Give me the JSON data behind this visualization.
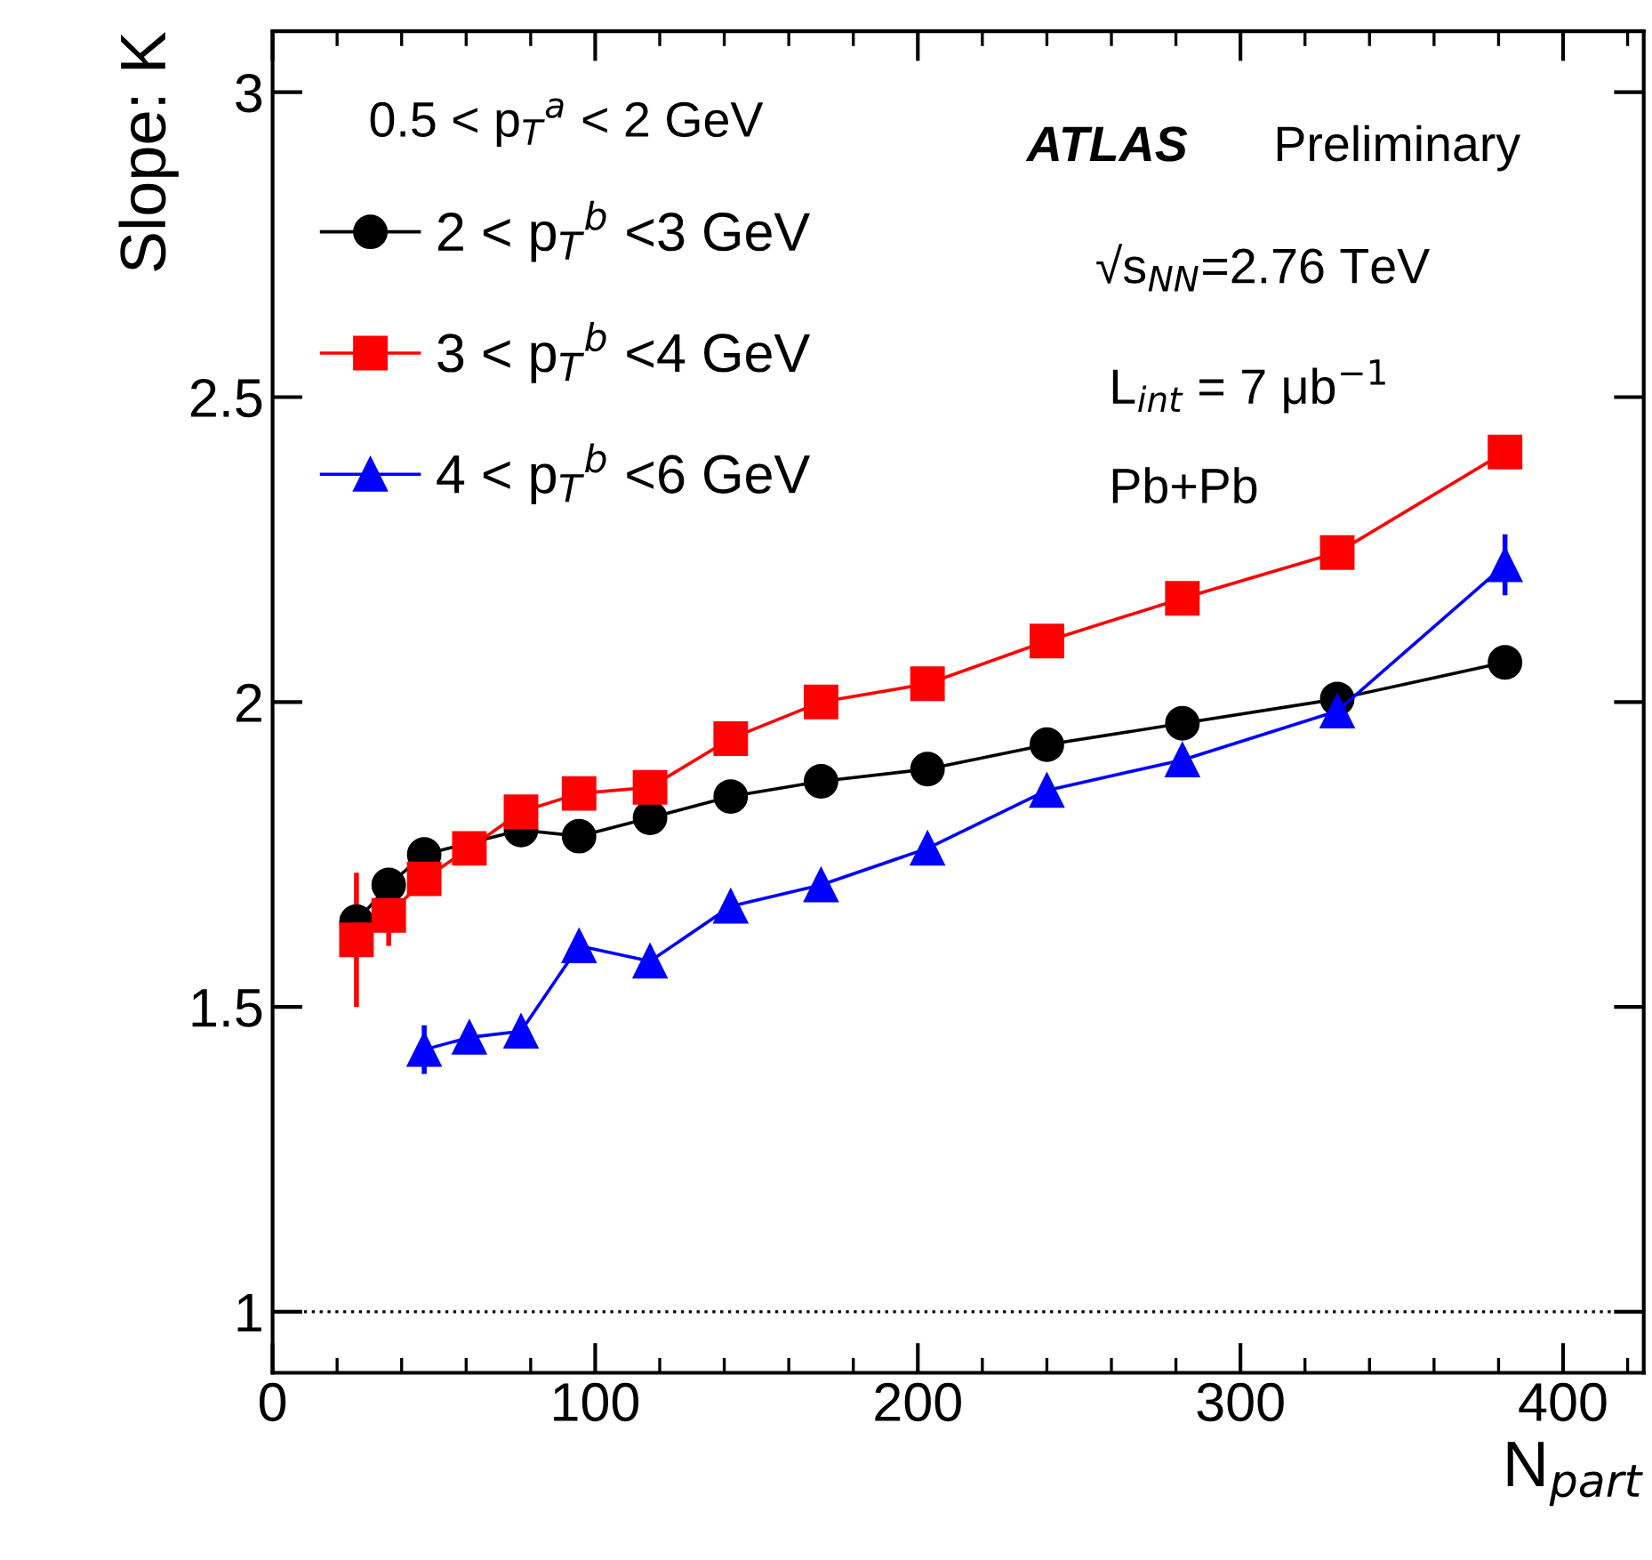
{
  "chart_data": {
    "type": "line",
    "xlabel": "N$_{part}$",
    "ylabel": "Slope: K",
    "x": [
      26,
      36,
      47,
      61,
      77,
      95,
      117,
      142,
      170,
      203,
      240,
      282,
      330,
      382
    ],
    "series": [
      {
        "name": "2 < p$_{T}$$^{b}$ <3 GeV",
        "color": "#000000",
        "marker": "circle",
        "values": [
          1.64,
          1.7,
          1.75,
          null,
          1.79,
          1.78,
          1.81,
          1.845,
          1.87,
          1.89,
          1.93,
          1.965,
          2.005,
          2.065
        ]
      },
      {
        "name": "3 < p$_{T}$$^{b}$ <4 GeV",
        "color": "#ff0000",
        "marker": "square",
        "values": [
          1.61,
          1.65,
          1.71,
          1.76,
          1.82,
          1.85,
          1.86,
          1.94,
          2.0,
          2.03,
          2.1,
          2.17,
          2.245,
          2.41
        ],
        "errors": [
          0.11,
          0.05,
          null,
          null,
          null,
          null,
          null,
          null,
          null,
          null,
          null,
          null,
          null,
          null
        ]
      },
      {
        "name": "4 < p$_{T}$$^{b}$ <6 GeV",
        "color": "#0000ff",
        "marker": "triangle",
        "x": [
          47,
          61,
          77,
          95,
          117,
          142,
          170,
          203,
          240,
          282,
          330,
          382
        ],
        "values": [
          1.43,
          1.45,
          1.46,
          1.6,
          1.575,
          1.665,
          1.7,
          1.76,
          1.855,
          1.905,
          1.985,
          2.225
        ],
        "errors": [
          0.04,
          null,
          null,
          null,
          null,
          null,
          null,
          null,
          null,
          null,
          null,
          0.05
        ]
      }
    ],
    "xlim": [
      0,
      425
    ],
    "xticks": [
      0,
      100,
      200,
      300,
      400
    ],
    "ylim": [
      0.9,
      3.1
    ],
    "yticks": [
      1,
      1.5,
      2,
      2.5,
      3
    ],
    "ref_lines": [
      {
        "axis": "y",
        "value": 1,
        "color": "#000000",
        "line_style": "dotted"
      }
    ],
    "annotations": [
      "0.5 < p$_{T}$$^{a}$ < 2 GeV",
      "ATLAS",
      "Preliminary",
      "√s$_{NN}$=2.76 TeV",
      "L$_{int}$ = 7 μb$^{−1}$",
      "Pb+Pb"
    ],
    "legend": "top left",
    "grid": false
  }
}
